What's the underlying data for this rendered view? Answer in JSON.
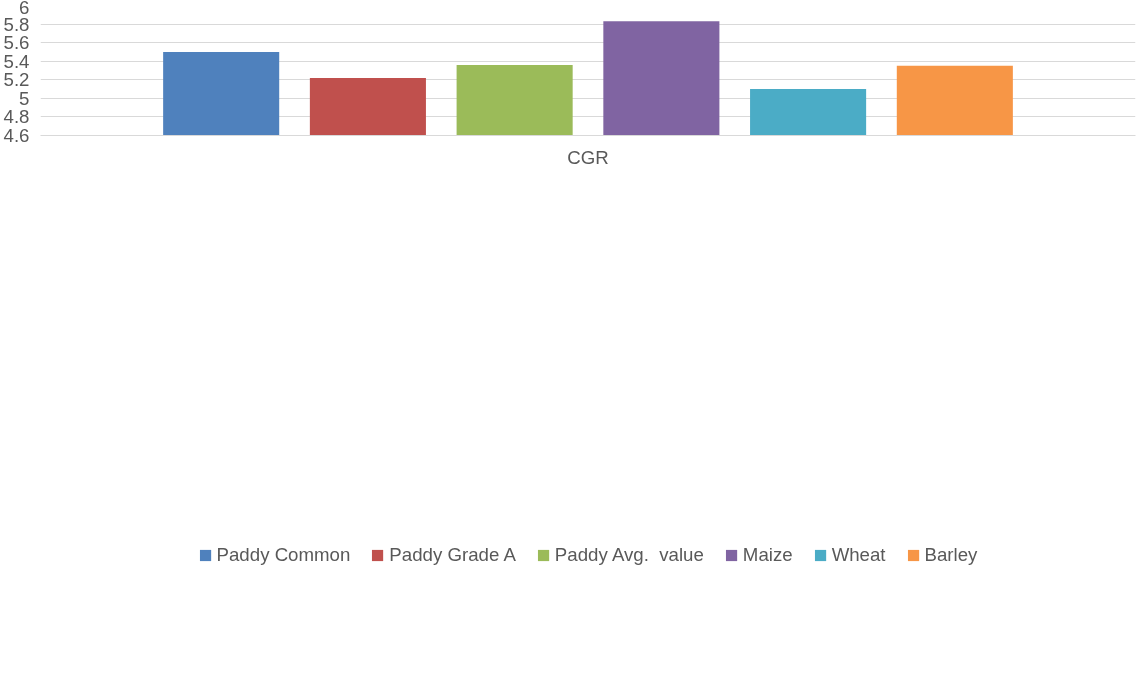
{
  "chart_data": {
    "type": "bar",
    "categories": [
      "CGR"
    ],
    "series": [
      {
        "name": "Paddy Common",
        "color": "#4f81bd",
        "values": [
          5.5
        ]
      },
      {
        "name": "Paddy Grade A",
        "color": "#c0504d",
        "values": [
          5.22
        ]
      },
      {
        "name": "Paddy Avg.  value",
        "color": "#9bbb59",
        "values": [
          5.36
        ]
      },
      {
        "name": "Maize",
        "color": "#8064a2",
        "values": [
          5.83
        ]
      },
      {
        "name": "Wheat",
        "color": "#4bacc6",
        "values": [
          5.1
        ]
      },
      {
        "name": "Barley",
        "color": "#f79646",
        "values": [
          5.35
        ]
      }
    ],
    "ylim": [
      4.6,
      6
    ],
    "yticks": [
      4.6,
      4.8,
      5,
      5.2,
      5.4,
      5.6,
      5.8,
      6
    ],
    "grid": "y",
    "legend": "bottom"
  }
}
